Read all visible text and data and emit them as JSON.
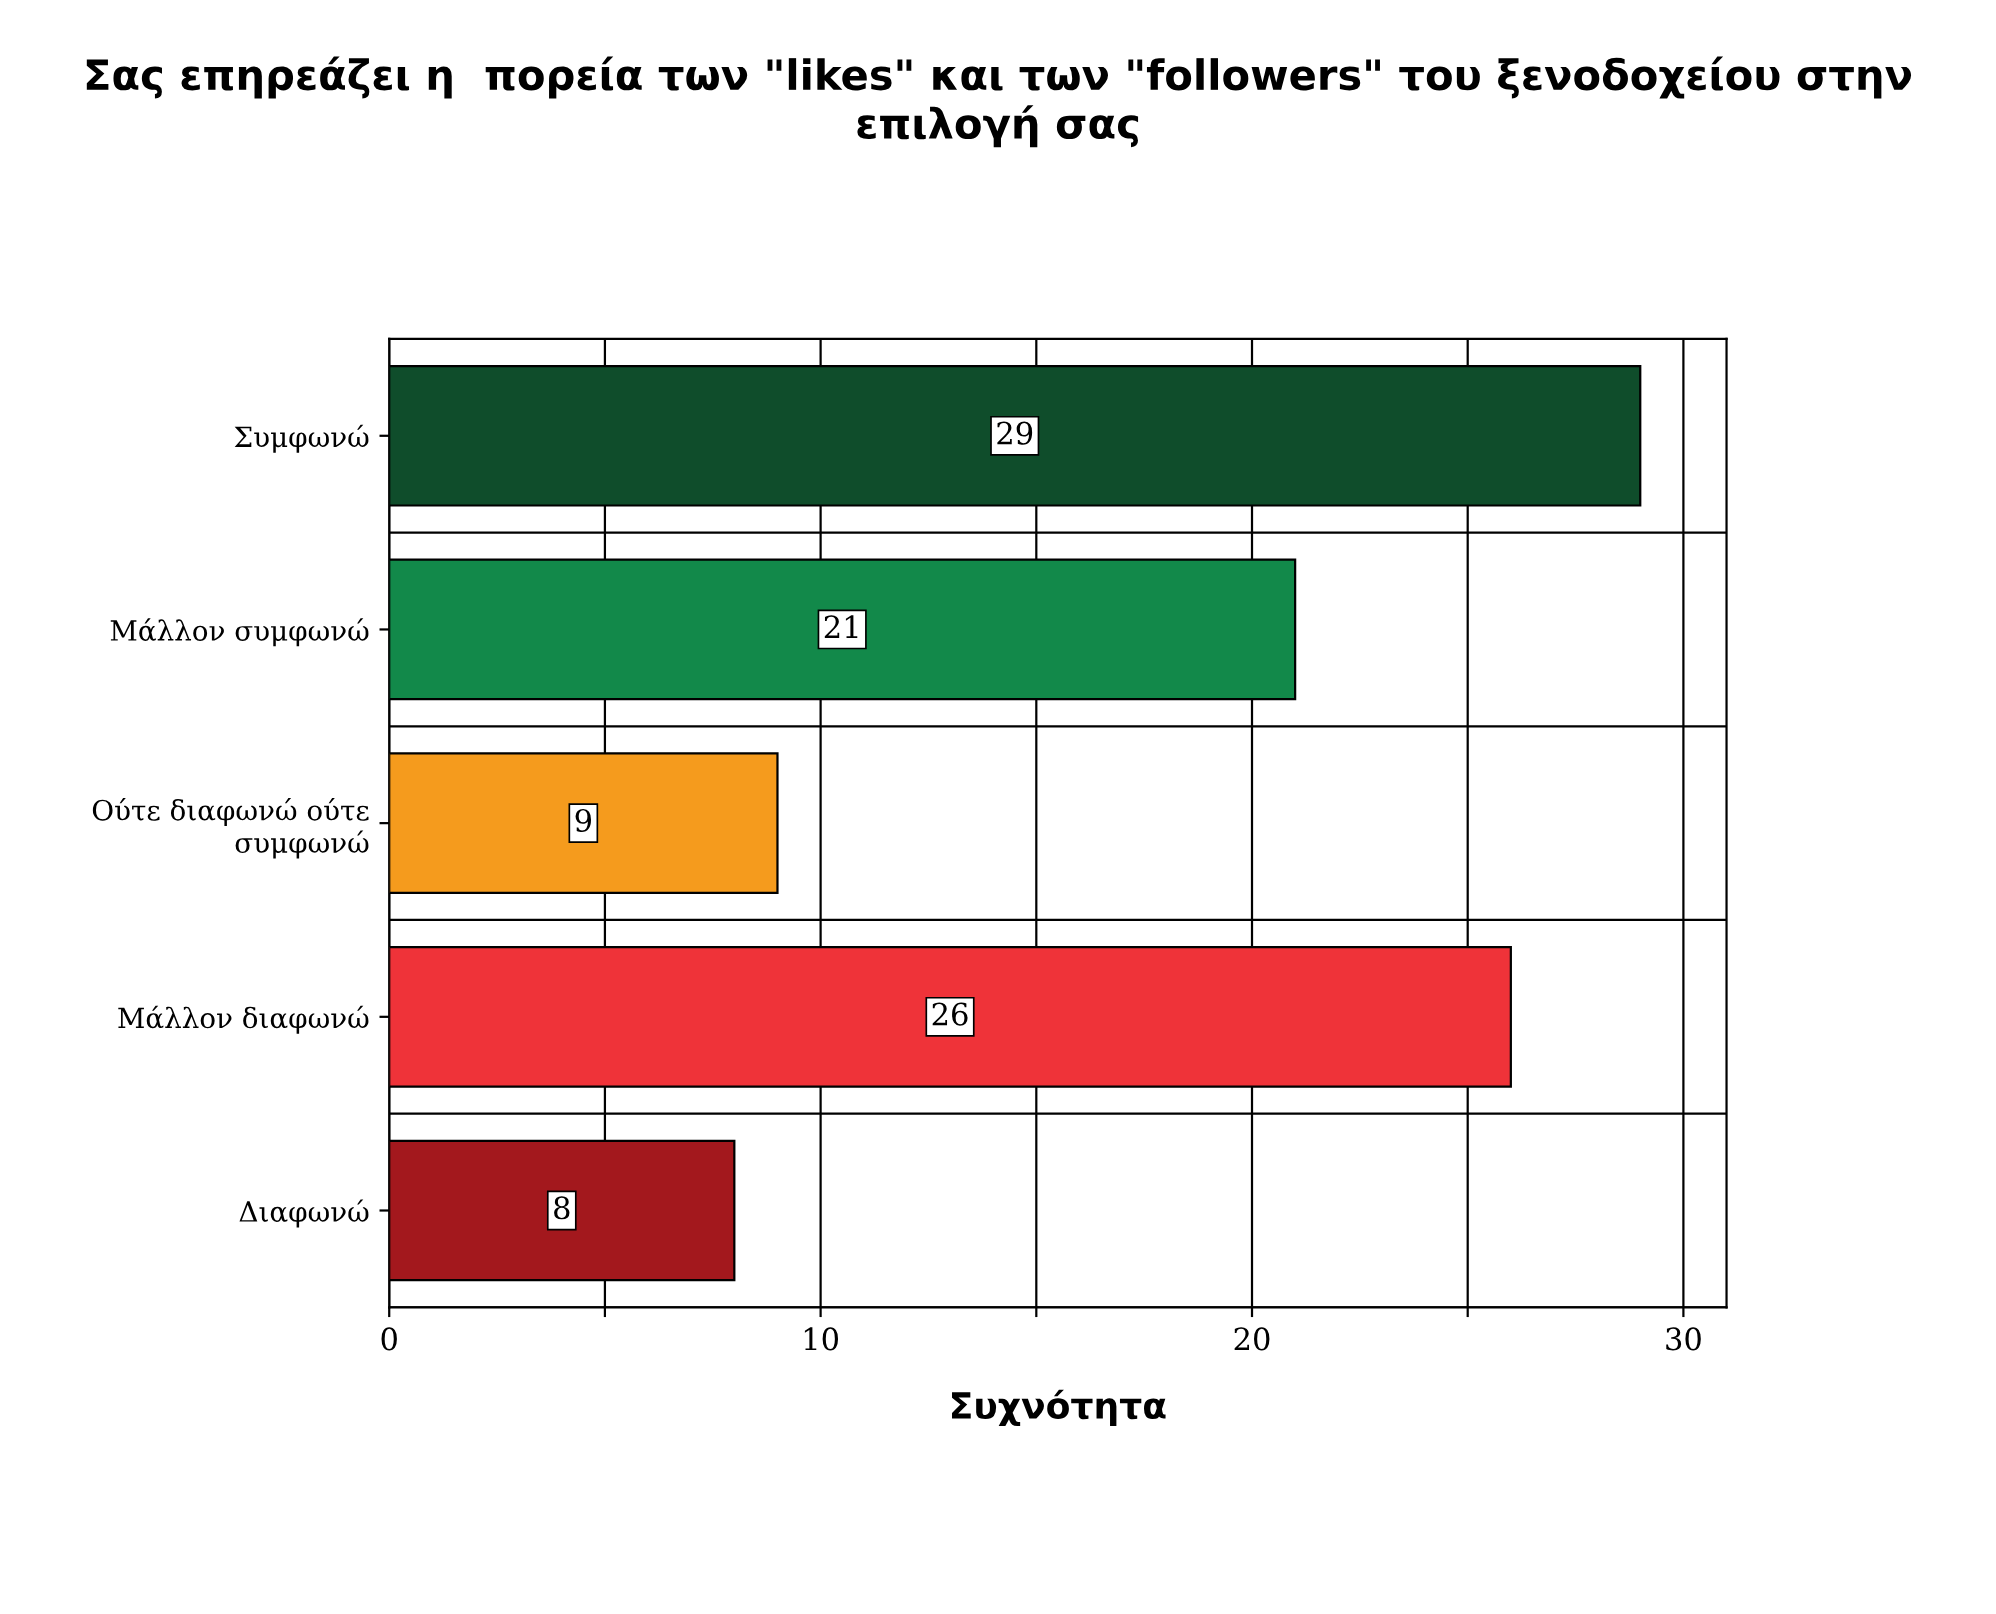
{
  "chart_data": {
    "type": "bar",
    "orientation": "horizontal",
    "title": "Σας επηρεάζει η  πορεία των \"likes\" και των \"followers\" του ξενοδοχείου στην επιλογή σας",
    "xlabel": "Συχνότητα",
    "categories": [
      "Συμφωνώ",
      "Μάλλον συμφωνώ",
      "Ούτε διαφωνώ ούτε\nσυμφωνώ",
      "Μάλλον διαφωνώ",
      "Διαφωνώ"
    ],
    "values": [
      29,
      21,
      9,
      26,
      8
    ],
    "colors": [
      "#0f4d2b",
      "#12894a",
      "#f59b1d",
      "#ef3339",
      "#a3181d"
    ],
    "xlim": [
      0,
      31
    ],
    "xticks": [
      0,
      {
        "value": 5,
        "label": null
      },
      10,
      {
        "value": 15,
        "label": null
      },
      20,
      {
        "value": 25,
        "label": null
      },
      30
    ],
    "grid": true,
    "data_labels": true
  }
}
